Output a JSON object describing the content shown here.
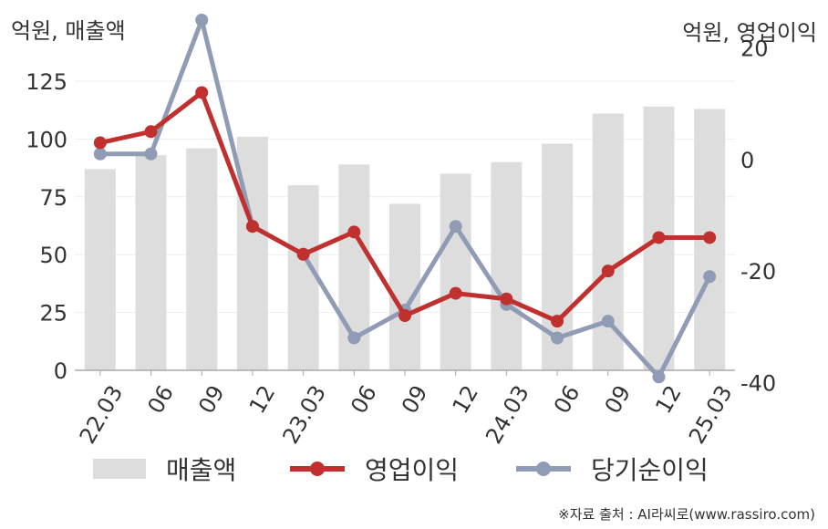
{
  "units": {
    "left": "억원, 매출액",
    "right": "억원, 영업이익"
  },
  "source": "※자료 출처 : AI라씨로(www.rassiro.com)",
  "colors": {
    "bar": "#dddddd",
    "operating": "#c0302e",
    "net": "#909cb5",
    "axis": "#aaaaaa",
    "grid": "#eeeeee",
    "text": "#333333"
  },
  "chart_data": {
    "type": "bar",
    "categories": [
      "22.03",
      "06",
      "09",
      "12",
      "23.03",
      "06",
      "09",
      "12",
      "24.03",
      "06",
      "09",
      "12",
      "25.03"
    ],
    "left_axis": {
      "range": [
        0,
        125
      ],
      "ticks": [
        0,
        25,
        50,
        75,
        100,
        125
      ]
    },
    "right_axis": {
      "range": [
        -45,
        25
      ],
      "ticks": [
        -40,
        -20,
        0,
        20
      ]
    },
    "series": [
      {
        "name": "매출액",
        "type": "bar",
        "axis": "left",
        "values": [
          87,
          93,
          96,
          101,
          80,
          89,
          72,
          85,
          90,
          98,
          111,
          114,
          113
        ]
      },
      {
        "name": "영업이익",
        "type": "line",
        "axis": "right",
        "values": [
          3,
          5,
          12,
          -12,
          -17,
          -13,
          -28,
          -24,
          -25,
          -29,
          -20,
          -14,
          -14
        ]
      },
      {
        "name": "당기순이익",
        "type": "line",
        "axis": "right",
        "values": [
          1,
          1,
          25,
          -12,
          -17,
          -32,
          -27,
          -12,
          -26,
          -32,
          -29,
          -39,
          -21
        ]
      }
    ],
    "legend": [
      "매출액",
      "영업이익",
      "당기순이익"
    ],
    "legend_position": "bottom"
  }
}
